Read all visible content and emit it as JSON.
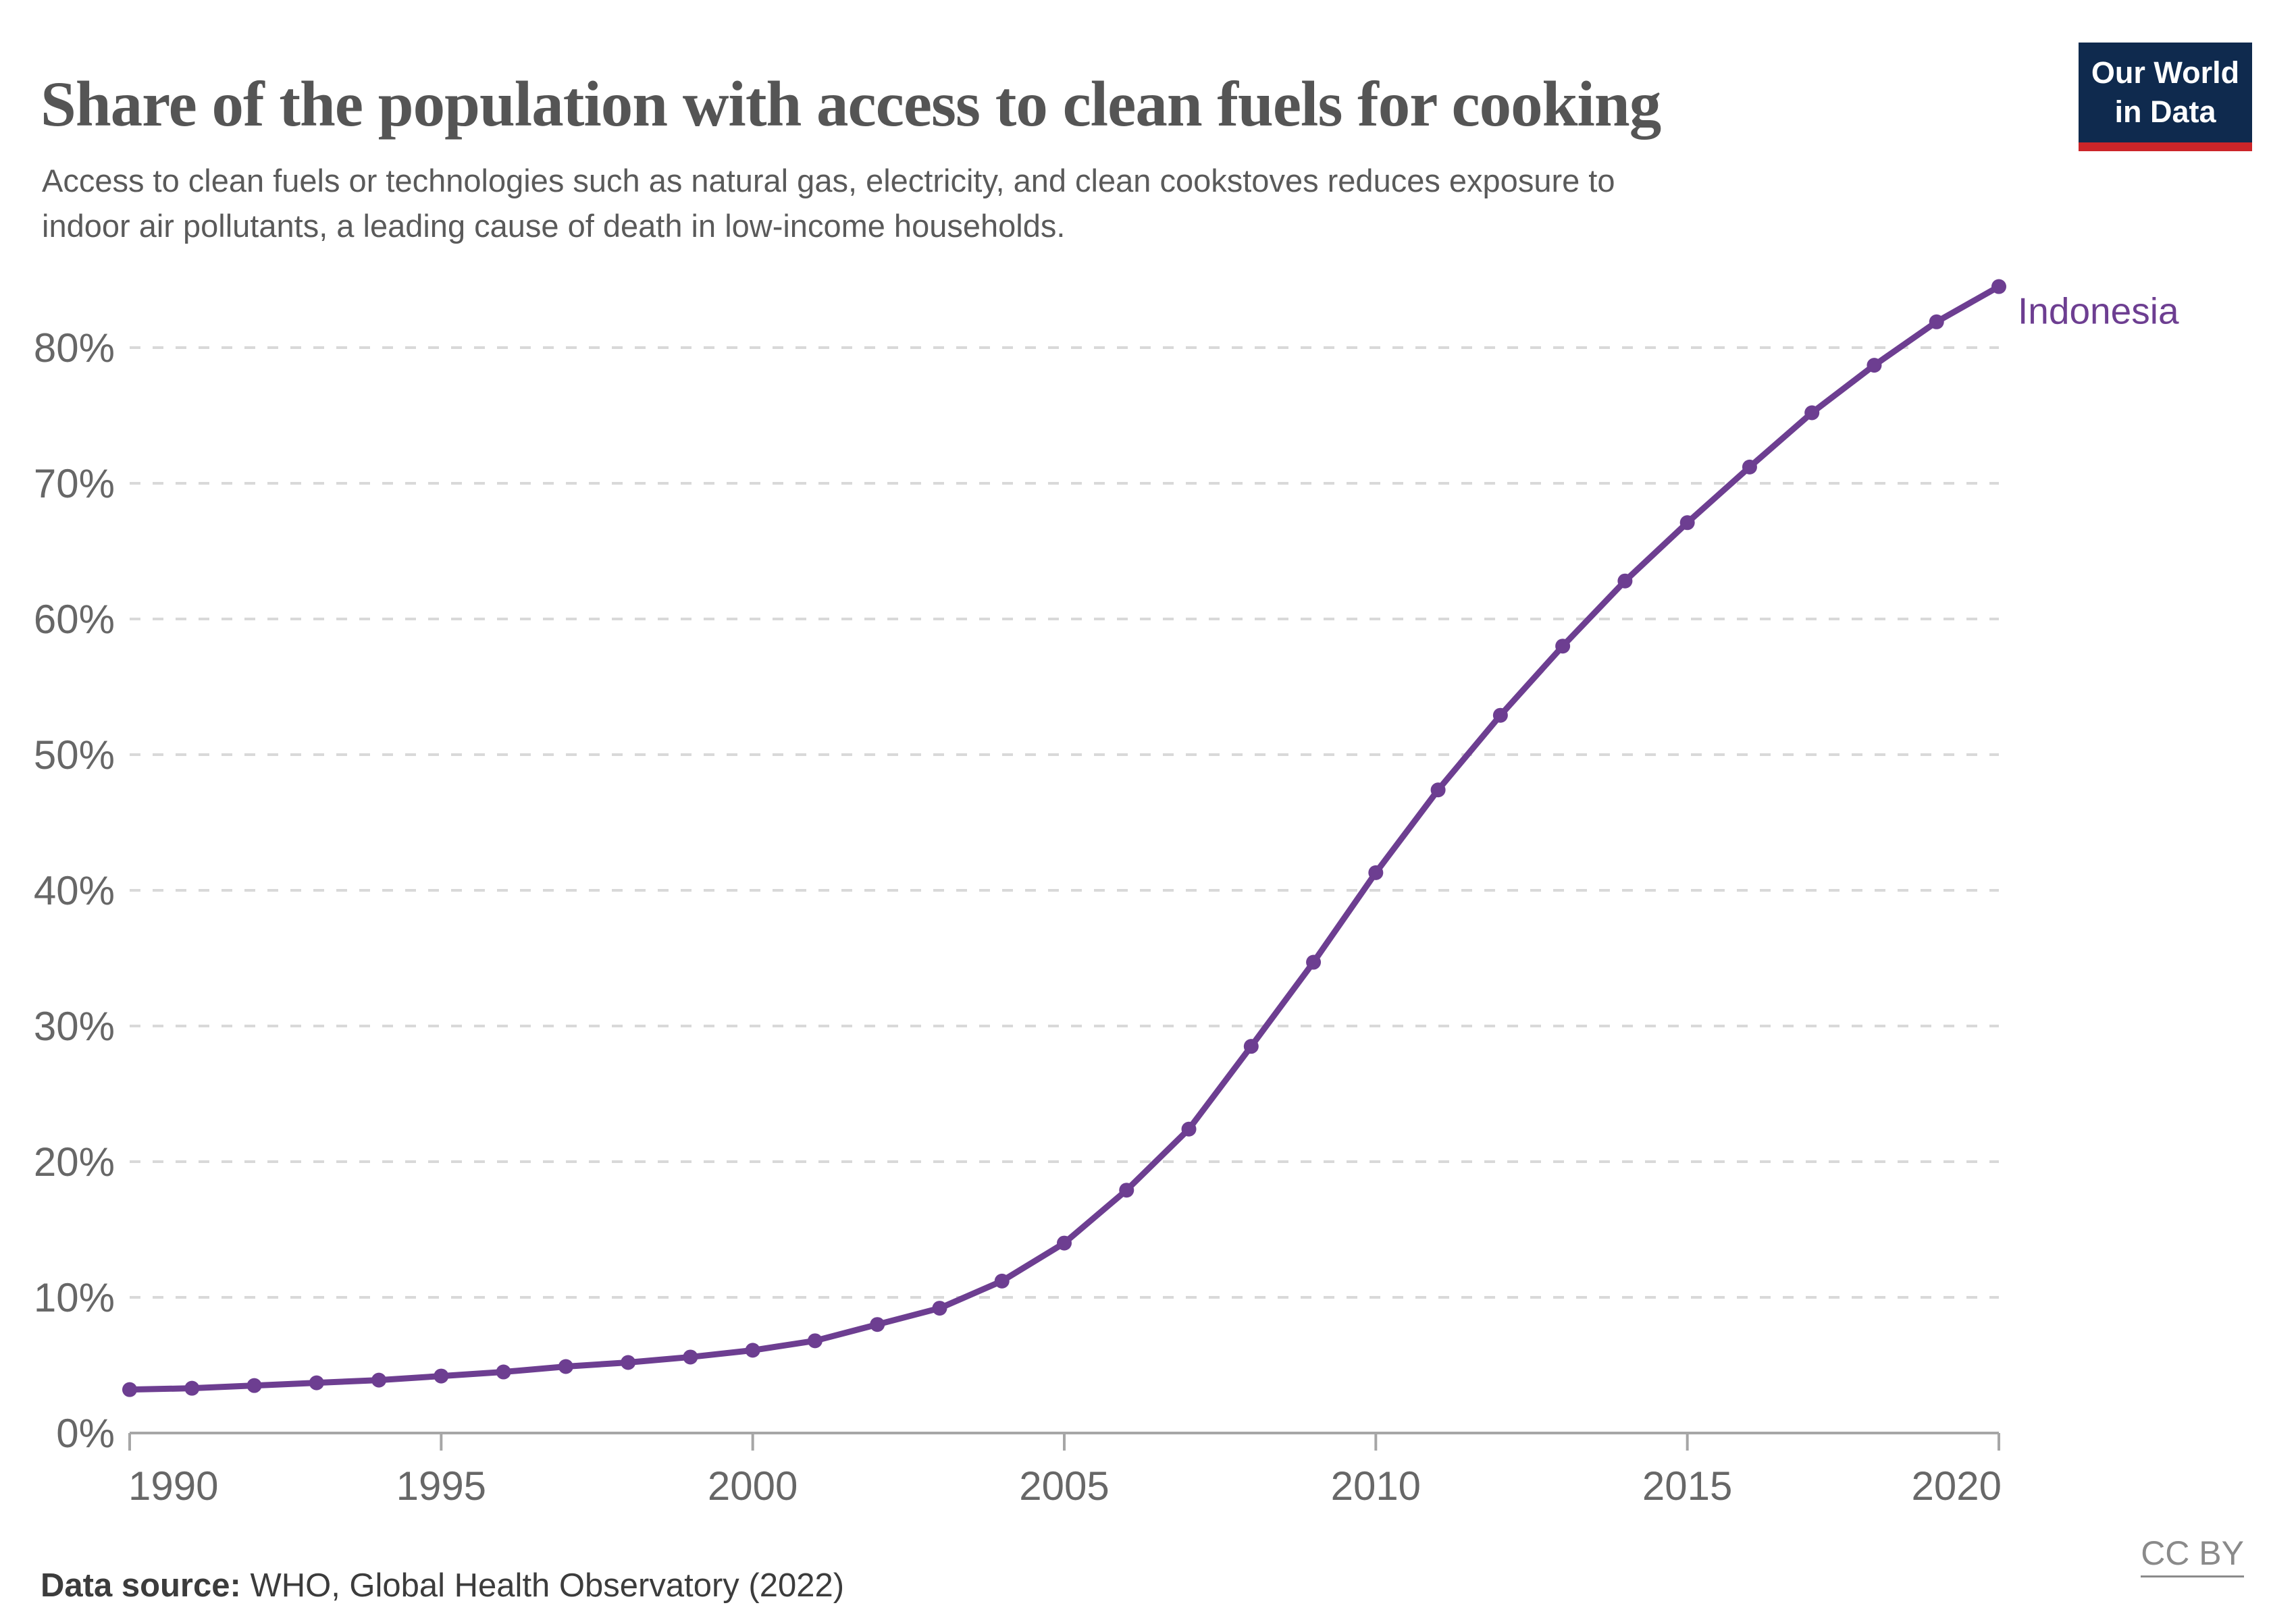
{
  "header": {
    "title": "Share of the population with access to clean fuels for cooking",
    "subtitle_line1": "Access to clean fuels or technologies such as natural gas, electricity, and clean cookstoves reduces exposure to",
    "subtitle_line2": "indoor air pollutants, a leading cause of death in low-income households.",
    "logo": {
      "line1": "Our World",
      "line2": "in Data"
    }
  },
  "footer": {
    "source_label": "Data source:",
    "source_text": " WHO, Global Health Observatory (2022)",
    "license": "CC BY"
  },
  "colors": {
    "series": "#6d3e91",
    "gridline": "#d9d9d9",
    "axis": "#a6a6a6",
    "tick_label": "#676767",
    "logo_bg": "#0f2a4e",
    "logo_bar": "#cc2529"
  },
  "chart_data": {
    "type": "line",
    "title": "Share of the population with access to clean fuels for cooking",
    "xlabel": "",
    "ylabel": "",
    "xlim": [
      1990,
      2020
    ],
    "ylim": [
      0,
      85
    ],
    "grid": "horizontal-dashed",
    "legend_position": "end-of-line-label",
    "xticks": [
      1990,
      1995,
      2000,
      2005,
      2010,
      2015,
      2020
    ],
    "yticks": [
      0,
      10,
      20,
      30,
      40,
      50,
      60,
      70,
      80
    ],
    "ytick_suffix": "%",
    "end_label": "Indonesia",
    "series": [
      {
        "name": "Indonesia",
        "color": "#6d3e91",
        "x": [
          1990,
          1991,
          1992,
          1993,
          1994,
          1995,
          1996,
          1997,
          1998,
          1999,
          2000,
          2001,
          2002,
          2003,
          2004,
          2005,
          2006,
          2007,
          2008,
          2009,
          2010,
          2011,
          2012,
          2013,
          2014,
          2015,
          2016,
          2017,
          2018,
          2019,
          2020
        ],
        "values": [
          3.2,
          3.3,
          3.5,
          3.7,
          3.9,
          4.2,
          4.5,
          4.9,
          5.2,
          5.6,
          6.1,
          6.8,
          8.0,
          9.2,
          11.2,
          14.0,
          17.9,
          22.4,
          28.5,
          34.7,
          41.3,
          47.4,
          52.9,
          58.0,
          62.8,
          67.1,
          71.2,
          75.2,
          78.7,
          81.9,
          84.5
        ]
      }
    ]
  }
}
